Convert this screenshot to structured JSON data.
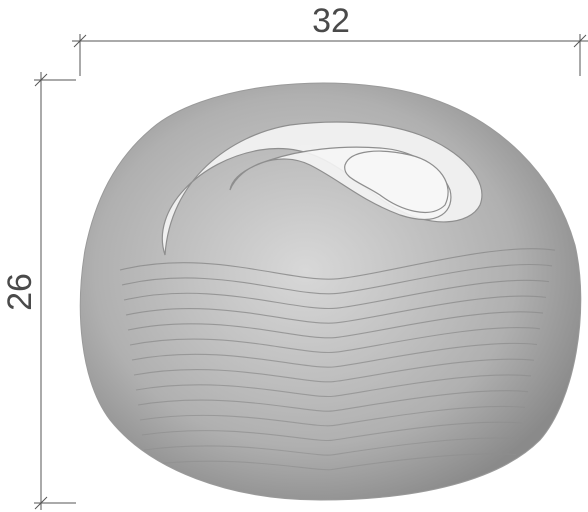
{
  "dimensions": {
    "width_label": "32",
    "height_label": "26"
  },
  "colors": {
    "dimension_line": "#555555",
    "dimension_text": "#4a4a4a",
    "outer_shell": "#9a9a9a",
    "contour_line": "#8e8e8e",
    "contour_fill_light": "#f3f3f3"
  }
}
